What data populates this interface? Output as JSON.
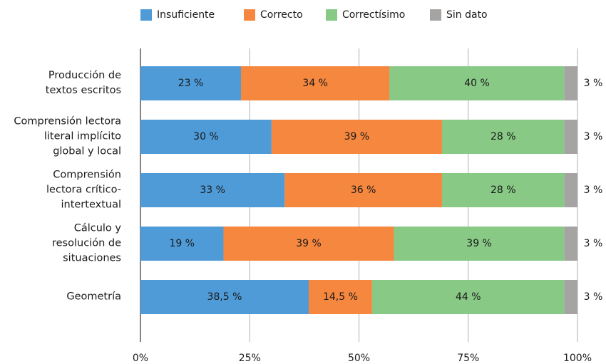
{
  "chart_data": {
    "type": "stacked_barh",
    "categories": [
      "Producción de\ntextos escritos",
      "Comprensión lectora\nliteral implícito\nglobal y local",
      "Comprensión\nlectora crítico-\nintertextual",
      "Cálculo y\nresolución de\nsituaciones",
      "Geometría"
    ],
    "series": [
      {
        "name": "Insuficiente",
        "color": "#4f9bd8",
        "values": [
          23,
          30,
          33,
          19,
          38.5
        ],
        "value_labels": [
          "23 %",
          "30 %",
          "33 %",
          "19 %",
          "38,5 %"
        ]
      },
      {
        "name": "Correcto",
        "color": "#f5873f",
        "values": [
          34,
          39,
          36,
          39,
          14.5
        ],
        "value_labels": [
          "34 %",
          "39 %",
          "36 %",
          "39 %",
          "14,5 %"
        ]
      },
      {
        "name": "Correctísimo",
        "color": "#88c985",
        "values": [
          40,
          28,
          28,
          39,
          44
        ],
        "value_labels": [
          "40 %",
          "28 %",
          "28 %",
          "39 %",
          "44 %"
        ]
      },
      {
        "name": "Sin dato",
        "color": "#a6a3a3",
        "values": [
          3,
          3,
          3,
          3,
          3
        ],
        "value_labels": [
          "3 %",
          "3 %",
          "3 %",
          "3 %",
          "3 %"
        ]
      }
    ],
    "xlim": [
      0,
      100
    ],
    "xticks": [
      {
        "value": 0,
        "label": "0%"
      },
      {
        "value": 25,
        "label": "25%"
      },
      {
        "value": 50,
        "label": "50%"
      },
      {
        "value": 75,
        "label": "75%"
      },
      {
        "value": 100,
        "label": "100%"
      }
    ],
    "grid": true,
    "legend": "top"
  }
}
